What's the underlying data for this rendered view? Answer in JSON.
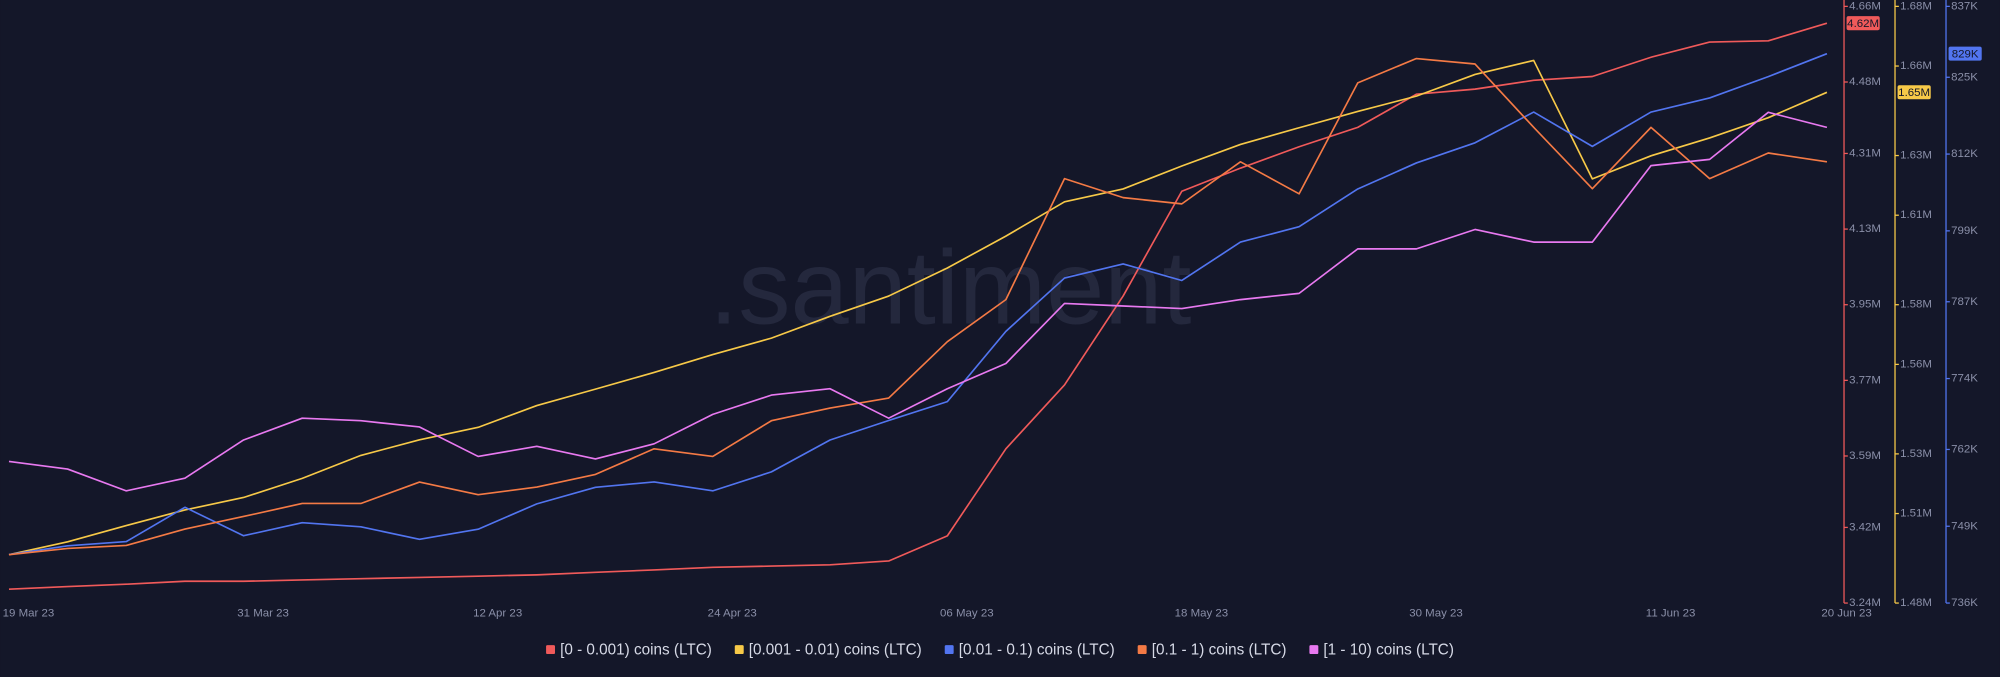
{
  "chart_data": {
    "type": "line",
    "watermark": ".santiment",
    "x": [
      "18 Mar 23",
      "21 Mar 23",
      "24 Mar 23",
      "27 Mar 23",
      "30 Mar 23",
      "02 Apr 23",
      "05 Apr 23",
      "08 Apr 23",
      "11 Apr 23",
      "14 Apr 23",
      "17 Apr 23",
      "20 Apr 23",
      "23 Apr 23",
      "26 Apr 23",
      "29 Apr 23",
      "02 May 23",
      "05 May 23",
      "08 May 23",
      "11 May 23",
      "14 May 23",
      "17 May 23",
      "20 May 23",
      "23 May 23",
      "26 May 23",
      "29 May 23",
      "01 Jun 23",
      "04 Jun 23",
      "07 Jun 23",
      "10 Jun 23",
      "13 Jun 23",
      "16 Jun 23",
      "19 Jun 23"
    ],
    "xticks": [
      "19 Mar 23",
      "31 Mar 23",
      "12 Apr 23",
      "24 Apr 23",
      "06 May 23",
      "18 May 23",
      "30 May 23",
      "11 Jun 23",
      "20 Jun 23"
    ],
    "ylim": [
      3240000,
      4660000
    ],
    "yticks": [
      {
        "value": 3240000,
        "label": "3.24M"
      },
      {
        "value": 3420000,
        "label": "3.42M"
      },
      {
        "value": 3590000,
        "label": "3.59M"
      },
      {
        "value": 3770000,
        "label": "3.77M"
      },
      {
        "value": 3950000,
        "label": "3.95M"
      },
      {
        "value": 4130000,
        "label": "4.13M"
      },
      {
        "value": 4310000,
        "label": "4.31M"
      },
      {
        "value": 4480000,
        "label": "4.48M"
      },
      {
        "value": 4660000,
        "label": "4.66M"
      }
    ],
    "y2lim": [
      1480000,
      1680000
    ],
    "y2ticks": [
      {
        "value": 1480000,
        "label": "1.48M"
      },
      {
        "value": 1510000,
        "label": "1.51M"
      },
      {
        "value": 1530000,
        "label": "1.53M"
      },
      {
        "value": 1560000,
        "label": "1.56M"
      },
      {
        "value": 1580000,
        "label": "1.58M"
      },
      {
        "value": 1610000,
        "label": "1.61M"
      },
      {
        "value": 1630000,
        "label": "1.63M"
      },
      {
        "value": 1660000,
        "label": "1.66M"
      },
      {
        "value": 1680000,
        "label": "1.68M"
      }
    ],
    "y3lim": [
      736000,
      837000
    ],
    "y3ticks": [
      {
        "value": 736000,
        "label": "736K"
      },
      {
        "value": 749000,
        "label": "749K"
      },
      {
        "value": 762000,
        "label": "762K"
      },
      {
        "value": 774000,
        "label": "774K"
      },
      {
        "value": 787000,
        "label": "787K"
      },
      {
        "value": 799000,
        "label": "799K"
      },
      {
        "value": 812000,
        "label": "812K"
      },
      {
        "value": 825000,
        "label": "825K"
      },
      {
        "value": 837000,
        "label": "837K"
      }
    ],
    "series": [
      {
        "name": "[0 - 0.001) coins (LTC)",
        "color": "#f05a5a",
        "axis": "y",
        "values": [
          3273000,
          3279000,
          3285000,
          3292000,
          3292000,
          3295000,
          3298000,
          3301000,
          3304000,
          3307000,
          3313000,
          3319000,
          3325000,
          3328000,
          3331000,
          3340000,
          3400000,
          3607000,
          3759000,
          3971000,
          4220000,
          4275000,
          4326000,
          4372000,
          4451000,
          4463000,
          4484000,
          4493000,
          4539000,
          4575000,
          4578000,
          4620000
        ],
        "value_labels": [
          null,
          null,
          null,
          null,
          null,
          null,
          null,
          null,
          null,
          null,
          null,
          null,
          null,
          null,
          null,
          null,
          null,
          null,
          null,
          null,
          null,
          null,
          null,
          null,
          null,
          null,
          null,
          null,
          null,
          null,
          null,
          "4.62M"
        ]
      },
      {
        "name": "[0.001 - 0.01) coins (LTC)",
        "color": "#f7c948",
        "axis": "y2",
        "values": [
          1496200,
          1500500,
          1506000,
          1511200,
          1515400,
          1521800,
          1529500,
          1534700,
          1538900,
          1546200,
          1551700,
          1557300,
          1563300,
          1568800,
          1576100,
          1582900,
          1592300,
          1603000,
          1614500,
          1618800,
          1626500,
          1633700,
          1639300,
          1644800,
          1649900,
          1657200,
          1661900,
          1622200,
          1629900,
          1635900,
          1642700,
          1651200
        ],
        "value_labels": [
          null,
          null,
          null,
          null,
          null,
          null,
          null,
          null,
          null,
          null,
          null,
          null,
          null,
          null,
          null,
          null,
          null,
          null,
          null,
          null,
          null,
          null,
          null,
          null,
          null,
          null,
          null,
          null,
          null,
          null,
          null,
          "1.65M"
        ]
      },
      {
        "name": "[0.01 - 0.1) coins (LTC)",
        "color": "#5275f0",
        "axis": "y3",
        "values": [
          744200,
          745700,
          746400,
          752200,
          747400,
          749600,
          748900,
          746800,
          748500,
          752800,
          755600,
          756500,
          755000,
          758200,
          763600,
          766900,
          770100,
          782000,
          791000,
          793400,
          790600,
          797100,
          799700,
          806100,
          810500,
          813900,
          819100,
          813300,
          819100,
          821500,
          825100,
          829000
        ],
        "value_labels": [
          null,
          null,
          null,
          null,
          null,
          null,
          null,
          null,
          null,
          null,
          null,
          null,
          null,
          null,
          null,
          null,
          null,
          null,
          null,
          null,
          null,
          null,
          null,
          null,
          null,
          null,
          null,
          null,
          null,
          null,
          null,
          "829K"
        ]
      },
      {
        "name": "[0.1 - 1) coins (LTC)",
        "color": "#f47a45",
        "axis": "y",
        "values": [
          3355000,
          3370000,
          3377000,
          3416000,
          3446000,
          3477000,
          3477000,
          3528000,
          3498000,
          3516000,
          3546000,
          3607000,
          3589000,
          3674000,
          3704000,
          3728000,
          3862000,
          3962000,
          4250000,
          4205000,
          4190000,
          4290000,
          4214000,
          4478000,
          4536000,
          4523000,
          4372000,
          4226000,
          4372000,
          4250000,
          4311000,
          4290000
        ]
      },
      {
        "name": "[1 - 10) coins (LTC)",
        "color": "#e879f0",
        "axis": "y",
        "values": [
          3577000,
          3559000,
          3507000,
          3537000,
          3628000,
          3680000,
          3674000,
          3659000,
          3589000,
          3613000,
          3583000,
          3619000,
          3689000,
          3735000,
          3750000,
          3680000,
          3750000,
          3810000,
          3953000,
          3947000,
          3941000,
          3962000,
          3977000,
          4083000,
          4083000,
          4129000,
          4099000,
          4099000,
          4281000,
          4296000,
          4408000,
          4372000
        ]
      }
    ]
  }
}
